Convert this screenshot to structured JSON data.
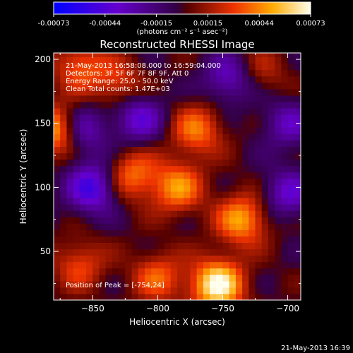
{
  "chart_data": {
    "type": "heatmap",
    "title": "Reconstructed RHESSI Image",
    "xlabel": "Heliocentric X (arcsec)",
    "ylabel": "Heliocentric Y (arcsec)",
    "xlim": [
      -880,
      -690
    ],
    "ylim": [
      12,
      205
    ],
    "x_ticks": [
      -850,
      -800,
      -750,
      -700
    ],
    "y_ticks": [
      50,
      100,
      150,
      200
    ],
    "colorbar": {
      "ticks": [
        "-0.00073",
        "-0.00044",
        "-0.00015",
        "0.00015",
        "0.00044",
        "0.00073"
      ],
      "range": [
        -0.00073,
        0.00073
      ],
      "unit_label": "(photons cm⁻² s⁻¹ asec⁻²)"
    },
    "annotations": [
      "21-May-2013 16:58:08.000 to 16:59:04.000",
      "Detectors: 3F 5F 6F 7F 8F 9F, Att 0",
      "Energy Range: 25.0 - 50.0 keV",
      "Clean    Total counts: 1.47E+03"
    ],
    "peak_label": "Position of Peak = [-754,24]",
    "peak": [
      -754,
      24
    ],
    "hot_spots": [
      {
        "x": -754,
        "y": 24,
        "value": 0.00073
      },
      {
        "x": -878,
        "y": 145,
        "value": 0.0006
      },
      {
        "x": -735,
        "y": 75,
        "value": 0.0005
      },
      {
        "x": -785,
        "y": 100,
        "value": 0.00045
      },
      {
        "x": -820,
        "y": 110,
        "value": 0.0004
      },
      {
        "x": -770,
        "y": 145,
        "value": 0.0004
      },
      {
        "x": -800,
        "y": 30,
        "value": 0.00035
      },
      {
        "x": -860,
        "y": 40,
        "value": 0.0003
      },
      {
        "x": -830,
        "y": 180,
        "value": 0.0003
      },
      {
        "x": -860,
        "y": 195,
        "value": 0.00035
      },
      {
        "x": -720,
        "y": 190,
        "value": 0.0002
      }
    ],
    "cold_spots": [
      {
        "x": -850,
        "y": 100,
        "value": -0.0005
      },
      {
        "x": -860,
        "y": 145,
        "value": -0.0004
      },
      {
        "x": -815,
        "y": 155,
        "value": -0.0004
      },
      {
        "x": -745,
        "y": 185,
        "value": -0.00035
      },
      {
        "x": -700,
        "y": 95,
        "value": -0.00035
      },
      {
        "x": -700,
        "y": 150,
        "value": -0.0003
      }
    ]
  },
  "footer": {
    "timestamp": "21-May-2013 16:39"
  }
}
